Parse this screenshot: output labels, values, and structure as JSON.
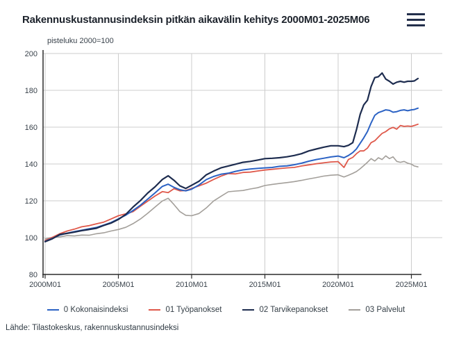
{
  "header": {
    "menu_icon": "hamburger-icon"
  },
  "source": {
    "label": "Lähde: Tilastokeskus, rakennuskustannusindeksi"
  },
  "colors": {
    "total_index": "#2b62c4",
    "labour_inputs": "#df584a",
    "material_inputs": "#1d2c4f",
    "services": "#a39f9a",
    "grid": "#cccccc",
    "axis": "#2b2b2b",
    "text_dark": "#1c222b"
  },
  "chart_data": {
    "type": "line",
    "title": "Rakennuskustannusindeksin pitkän aikavälin kehitys 2000M01-2025M06",
    "ylabel": "pisteluku 2000=100",
    "xlabel": "",
    "grid": true,
    "legend_position": "bottom",
    "ylim": [
      80,
      200
    ],
    "xlim": [
      2000.0,
      2025.5
    ],
    "y_ticks": [
      80,
      100,
      120,
      140,
      160,
      180,
      200
    ],
    "x_ticks": [
      "2000M01",
      "2005M01",
      "2010M01",
      "2015M01",
      "2020M01",
      "2025M01"
    ],
    "x_tick_years": [
      2000,
      2005,
      2010,
      2015,
      2020,
      2025
    ],
    "x_unit": "decimal year (monthly index series 2000M01–2025M06, sampled)",
    "x": [
      2000,
      2000.5,
      2001,
      2001.5,
      2002,
      2002.5,
      2003,
      2003.5,
      2004,
      2004.5,
      2005,
      2005.5,
      2006,
      2006.5,
      2007,
      2007.5,
      2008,
      2008.4,
      2008.8,
      2009.2,
      2009.6,
      2010,
      2010.5,
      2011,
      2011.5,
      2012,
      2012.5,
      2013,
      2013.5,
      2014,
      2014.5,
      2015,
      2015.5,
      2016,
      2016.5,
      2017,
      2017.5,
      2018,
      2018.5,
      2019,
      2019.5,
      2020,
      2020.4,
      2020.7,
      2021,
      2021.25,
      2021.5,
      2021.75,
      2022,
      2022.25,
      2022.5,
      2022.75,
      2023,
      2023.25,
      2023.5,
      2023.75,
      2024,
      2024.25,
      2024.5,
      2024.75,
      2025,
      2025.2,
      2025.45
    ],
    "series": [
      {
        "name": "0 Kokonaisindeksi",
        "color": "#2b62c4",
        "values": [
          98.0,
          99.6,
          101.4,
          102.4,
          103.3,
          104.0,
          104.8,
          105.5,
          106.8,
          108.2,
          110.2,
          112.2,
          114.7,
          117.6,
          120.9,
          124.3,
          127.8,
          129.0,
          127.3,
          126.0,
          125.4,
          126.3,
          128.6,
          131.5,
          133.2,
          134.4,
          135.0,
          136.0,
          136.8,
          137.3,
          137.6,
          137.9,
          138.1,
          138.7,
          139.0,
          139.6,
          140.4,
          141.5,
          142.4,
          143.1,
          143.8,
          144.3,
          143.4,
          144.6,
          146.2,
          148.2,
          151.2,
          154.2,
          157.6,
          162.3,
          166.4,
          167.9,
          168.6,
          169.4,
          169.1,
          168.1,
          168.4,
          169.1,
          169.4,
          168.9,
          169.4,
          169.6,
          170.3
        ]
      },
      {
        "name": "01 Työpanokset",
        "color": "#df584a",
        "values": [
          98.4,
          100.2,
          102.1,
          103.6,
          104.6,
          105.9,
          106.5,
          107.5,
          108.4,
          110.1,
          111.9,
          112.9,
          114.1,
          117.0,
          119.8,
          122.6,
          125.0,
          124.4,
          126.6,
          125.4,
          125.6,
          126.7,
          128.1,
          129.6,
          131.6,
          133.4,
          134.8,
          134.6,
          135.4,
          135.6,
          136.2,
          136.7,
          137.1,
          137.5,
          137.9,
          138.1,
          138.9,
          139.5,
          140.1,
          140.6,
          141.1,
          141.3,
          138.1,
          142.4,
          143.6,
          145.6,
          147.1,
          147.1,
          148.6,
          151.6,
          152.6,
          154.6,
          156.6,
          157.6,
          159.1,
          159.9,
          158.9,
          160.9,
          160.4,
          160.6,
          160.4,
          160.9,
          161.6
        ]
      },
      {
        "name": "02 Tarvikepanokset",
        "color": "#1d2c4f",
        "values": [
          97.8,
          99.4,
          101.7,
          102.3,
          103.0,
          103.8,
          104.4,
          105.1,
          106.6,
          107.9,
          109.9,
          112.6,
          116.6,
          120.1,
          124.2,
          127.6,
          131.6,
          133.6,
          131.1,
          128.1,
          126.7,
          128.4,
          130.6,
          134.1,
          136.1,
          137.9,
          138.9,
          139.9,
          140.9,
          141.4,
          142.1,
          142.9,
          143.1,
          143.4,
          143.9,
          144.6,
          145.6,
          147.1,
          148.1,
          149.1,
          149.9,
          149.9,
          149.4,
          150.1,
          151.6,
          158.6,
          166.9,
          172.1,
          174.6,
          182.1,
          186.9,
          187.4,
          189.4,
          186.1,
          184.9,
          183.4,
          184.4,
          184.9,
          184.4,
          184.9,
          184.9,
          185.1,
          186.4
        ]
      },
      {
        "name": "03 Palvelut",
        "color": "#a39f9a",
        "values": [
          99.3,
          100.1,
          100.4,
          101.1,
          100.9,
          101.4,
          101.3,
          102.1,
          102.6,
          103.6,
          104.4,
          105.6,
          107.6,
          110.1,
          113.2,
          116.6,
          119.9,
          121.4,
          117.9,
          114.1,
          112.1,
          111.9,
          113.1,
          116.1,
          119.9,
          122.4,
          124.9,
          125.3,
          125.6,
          126.4,
          127.1,
          128.3,
          128.9,
          129.4,
          129.9,
          130.4,
          131.1,
          131.9,
          132.6,
          133.4,
          133.9,
          134.1,
          132.9,
          133.9,
          134.9,
          135.9,
          137.4,
          139.1,
          140.9,
          142.9,
          141.6,
          143.4,
          142.4,
          144.4,
          142.9,
          143.9,
          141.4,
          140.9,
          141.4,
          140.4,
          139.9,
          138.9,
          138.4
        ]
      }
    ]
  }
}
